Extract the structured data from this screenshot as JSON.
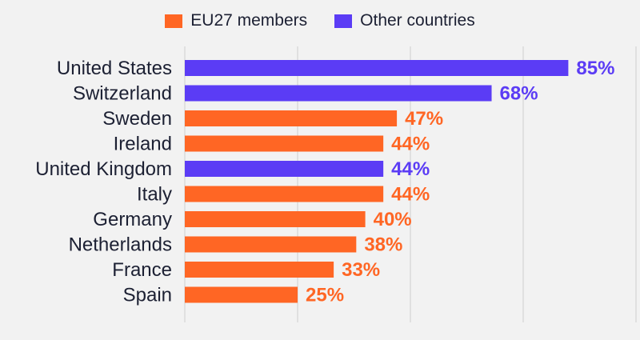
{
  "legend": {
    "eu_label": "EU27 members",
    "other_label": "Other countries"
  },
  "colors": {
    "eu": "#ff6624",
    "other": "#5b3cf5",
    "grid": "#cfcfcf",
    "background": "#f2f2f2"
  },
  "chart_data": {
    "type": "bar",
    "orientation": "horizontal",
    "categories": [
      "United States",
      "Switzerland",
      "Sweden",
      "Ireland",
      "United Kingdom",
      "Italy",
      "Germany",
      "Netherlands",
      "France",
      "Spain"
    ],
    "values": [
      85,
      68,
      47,
      44,
      44,
      44,
      40,
      38,
      33,
      25
    ],
    "value_labels": [
      "85%",
      "68%",
      "47%",
      "44%",
      "44%",
      "44%",
      "40%",
      "38%",
      "33%",
      "25%"
    ],
    "group": [
      "Other countries",
      "Other countries",
      "EU27 members",
      "EU27 members",
      "Other countries",
      "EU27 members",
      "EU27 members",
      "EU27 members",
      "EU27 members",
      "EU27 members"
    ],
    "series": [
      {
        "name": "EU27 members"
      },
      {
        "name": "Other countries"
      }
    ],
    "xlim": [
      0,
      100
    ],
    "grid": true,
    "legend_position": "top"
  }
}
